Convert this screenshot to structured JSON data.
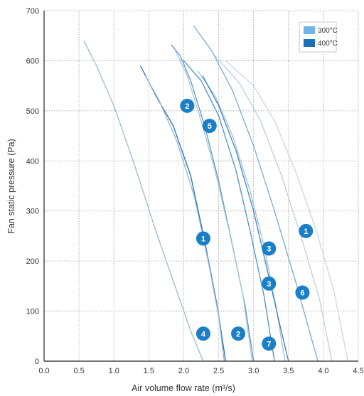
{
  "chart_data": {
    "type": "line",
    "title": "",
    "xlabel": "Air volume flow rate (m³/s)",
    "ylabel": "Fan static pressure (Pa)",
    "xlim": [
      0,
      4.5
    ],
    "ylim": [
      0,
      700
    ],
    "x_ticks": [
      "0.0",
      "0.5",
      "1.0",
      "1.5",
      "2.0",
      "2.5",
      "3.0",
      "3.5",
      "4.0",
      "4.5"
    ],
    "y_ticks": [
      "0",
      "100",
      "200",
      "300",
      "400",
      "500",
      "600",
      "700"
    ],
    "grid": true,
    "legend_position": "top-right",
    "legend": [
      {
        "label": "300°C",
        "color": "#6fb4e4"
      },
      {
        "label": "400°C",
        "color": "#1d6fb6"
      }
    ],
    "series": [
      {
        "label": "4",
        "color": "#9bbbd4",
        "points": [
          [
            0.57,
            640
          ],
          [
            0.75,
            590
          ],
          [
            1.0,
            510
          ],
          [
            1.3,
            390
          ],
          [
            1.6,
            260
          ],
          [
            1.9,
            140
          ],
          [
            2.1,
            60
          ],
          [
            2.28,
            0
          ]
        ]
      },
      {
        "label": "2",
        "color": "#2a6db0",
        "points": [
          [
            1.38,
            590
          ],
          [
            1.6,
            530
          ],
          [
            1.85,
            470
          ],
          [
            2.1,
            370
          ],
          [
            2.3,
            240
          ],
          [
            2.48,
            110
          ],
          [
            2.6,
            0
          ]
        ]
      },
      {
        "label": "2",
        "color": "#8fb6da",
        "points": [
          [
            1.45,
            570
          ],
          [
            1.65,
            520
          ],
          [
            1.9,
            440
          ],
          [
            2.15,
            330
          ],
          [
            2.35,
            200
          ],
          [
            2.5,
            90
          ],
          [
            2.58,
            0
          ]
        ]
      },
      {
        "label": "5",
        "color": "#5c96c9",
        "points": [
          [
            1.82,
            632
          ],
          [
            1.95,
            610
          ],
          [
            2.1,
            560
          ],
          [
            2.3,
            470
          ],
          [
            2.5,
            360
          ],
          [
            2.7,
            230
          ],
          [
            2.88,
            110
          ],
          [
            3.0,
            0
          ]
        ]
      },
      {
        "label": "5",
        "color": "#a9c4dd",
        "points": [
          [
            1.88,
            620
          ],
          [
            2.05,
            570
          ],
          [
            2.25,
            480
          ],
          [
            2.45,
            380
          ],
          [
            2.65,
            260
          ],
          [
            2.85,
            130
          ],
          [
            2.98,
            0
          ]
        ]
      },
      {
        "label": "1",
        "color": "#4d8fc8",
        "points": [
          [
            2.0,
            600
          ],
          [
            2.25,
            560
          ],
          [
            2.5,
            490
          ],
          [
            2.75,
            380
          ],
          [
            2.95,
            260
          ],
          [
            3.15,
            130
          ],
          [
            3.3,
            0
          ]
        ]
      },
      {
        "label": "3",
        "color": "#9fc1e0",
        "points": [
          [
            2.2,
            580
          ],
          [
            2.45,
            530
          ],
          [
            2.7,
            450
          ],
          [
            2.95,
            340
          ],
          [
            3.15,
            230
          ],
          [
            3.32,
            110
          ],
          [
            3.45,
            0
          ]
        ]
      },
      {
        "label": "3",
        "color": "#3f82c2",
        "points": [
          [
            2.27,
            570
          ],
          [
            2.5,
            510
          ],
          [
            2.75,
            420
          ],
          [
            3.0,
            300
          ],
          [
            3.2,
            180
          ],
          [
            3.38,
            70
          ],
          [
            3.5,
            0
          ]
        ]
      },
      {
        "label": "7",
        "color": "#7aaad4",
        "points": [
          [
            2.14,
            670
          ],
          [
            2.4,
            620
          ],
          [
            2.7,
            540
          ],
          [
            3.0,
            430
          ],
          [
            3.3,
            300
          ],
          [
            3.6,
            160
          ],
          [
            3.8,
            60
          ],
          [
            3.92,
            0
          ]
        ]
      },
      {
        "label": "6",
        "color": "#b7cfe4",
        "points": [
          [
            2.45,
            610
          ],
          [
            2.8,
            555
          ],
          [
            3.1,
            480
          ],
          [
            3.4,
            370
          ],
          [
            3.7,
            240
          ],
          [
            3.95,
            120
          ],
          [
            4.12,
            0
          ]
        ]
      },
      {
        "label": "1",
        "color": "#c6d8e9",
        "points": [
          [
            2.6,
            600
          ],
          [
            3.0,
            550
          ],
          [
            3.3,
            480
          ],
          [
            3.6,
            380
          ],
          [
            3.9,
            260
          ],
          [
            4.15,
            140
          ],
          [
            4.35,
            0
          ]
        ]
      }
    ],
    "markers": [
      {
        "label": "2",
        "x": 2.05,
        "y": 510
      },
      {
        "label": "5",
        "x": 2.37,
        "y": 470
      },
      {
        "label": "1",
        "x": 2.28,
        "y": 245
      },
      {
        "label": "1",
        "x": 3.75,
        "y": 260
      },
      {
        "label": "3",
        "x": 3.22,
        "y": 225
      },
      {
        "label": "3",
        "x": 3.22,
        "y": 155
      },
      {
        "label": "6",
        "x": 3.7,
        "y": 137
      },
      {
        "label": "4",
        "x": 2.28,
        "y": 55
      },
      {
        "label": "2",
        "x": 2.78,
        "y": 55
      },
      {
        "label": "7",
        "x": 3.22,
        "y": 35
      }
    ]
  }
}
